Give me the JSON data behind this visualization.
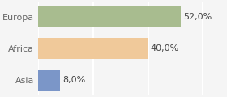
{
  "categories": [
    "Europa",
    "Africa",
    "Asia"
  ],
  "values": [
    52.0,
    40.0,
    8.0
  ],
  "bar_colors": [
    "#a8bc8f",
    "#f0c99a",
    "#7b96c8"
  ],
  "labels": [
    "52,0%",
    "40,0%",
    "8,0%"
  ],
  "background_color": "#f5f5f5",
  "plot_bg_color": "#f5f5f5",
  "xlim": [
    0,
    68
  ],
  "bar_height": 0.65,
  "label_fontsize": 8,
  "tick_fontsize": 8,
  "grid_color": "#ffffff",
  "grid_linewidth": 1.5
}
